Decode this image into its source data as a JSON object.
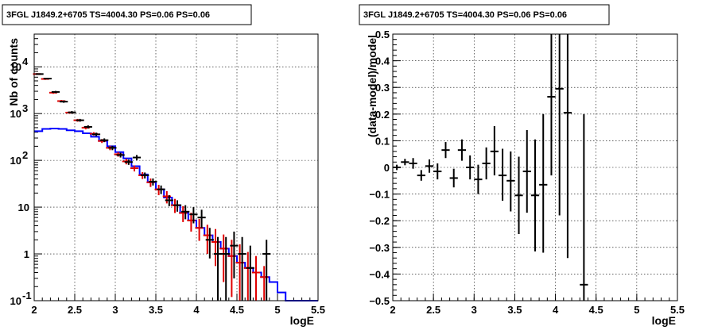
{
  "chart_data": [
    {
      "type": "line",
      "title": "3FGL J1849.2+6705 TS=4004.30 PS=0.06 PS=0.06",
      "xlabel": "logE",
      "ylabel": "Nb of counts",
      "xlim": [
        2,
        5.5
      ],
      "ylim": [
        0.1,
        50000
      ],
      "y_scale": "log",
      "grid": true,
      "x_ticks": [
        "2",
        "2.5",
        "3",
        "3.5",
        "4",
        "4.5",
        "5",
        "5.5"
      ],
      "y_ticks": [
        {
          "v": 0.1,
          "base": "10",
          "exp": "-1"
        },
        {
          "v": 1,
          "base": "1",
          "exp": ""
        },
        {
          "v": 10,
          "base": "10",
          "exp": ""
        },
        {
          "v": 100,
          "base": "10",
          "exp": "2"
        },
        {
          "v": 1000,
          "base": "10",
          "exp": "3"
        },
        {
          "v": 10000,
          "base": "10",
          "exp": "4"
        }
      ],
      "series": [
        {
          "kind": "model-step",
          "color": "#0000ff",
          "x_edges": [
            2.0,
            2.1,
            2.2,
            2.3,
            2.4,
            2.5,
            2.6,
            2.7,
            2.8,
            2.9,
            3.0,
            3.1,
            3.2,
            3.3,
            3.4,
            3.5,
            3.6,
            3.7,
            3.8,
            3.9,
            4.0,
            4.1,
            4.2,
            4.3,
            4.4,
            4.5,
            4.6,
            4.7,
            4.8,
            4.9,
            5.0,
            5.1,
            5.2,
            5.3,
            5.4,
            5.5
          ],
          "values": [
            420,
            470,
            480,
            470,
            440,
            420,
            380,
            320,
            260,
            200,
            150,
            110,
            75,
            50,
            34,
            24,
            16,
            11,
            7.5,
            5.2,
            3.6,
            2.5,
            1.8,
            1.3,
            0.9,
            0.65,
            0.5,
            0.4,
            0.32,
            0.25,
            0.15,
            0.1,
            0.1,
            0.1,
            0.1
          ]
        },
        {
          "kind": "model-points",
          "color": "#e00000",
          "points": [
            {
              "x": 2.05,
              "y": 7000,
              "lo": 6700,
              "hi": 7300
            },
            {
              "x": 2.15,
              "y": 5500,
              "lo": 5250,
              "hi": 5750
            },
            {
              "x": 2.25,
              "y": 2800,
              "lo": 2650,
              "hi": 2950
            },
            {
              "x": 2.35,
              "y": 1850,
              "lo": 1750,
              "hi": 1950
            },
            {
              "x": 2.45,
              "y": 1050,
              "lo": 990,
              "hi": 1110
            },
            {
              "x": 2.55,
              "y": 720,
              "lo": 670,
              "hi": 770
            },
            {
              "x": 2.65,
              "y": 500,
              "lo": 460,
              "hi": 540
            },
            {
              "x": 2.75,
              "y": 370,
              "lo": 340,
              "hi": 400
            },
            {
              "x": 2.85,
              "y": 260,
              "lo": 235,
              "hi": 285
            },
            {
              "x": 2.95,
              "y": 185,
              "lo": 165,
              "hi": 205
            },
            {
              "x": 3.05,
              "y": 135,
              "lo": 120,
              "hi": 150
            },
            {
              "x": 3.15,
              "y": 95,
              "lo": 82,
              "hi": 108
            },
            {
              "x": 3.25,
              "y": 68,
              "lo": 58,
              "hi": 78
            },
            {
              "x": 3.35,
              "y": 48,
              "lo": 40,
              "hi": 56
            },
            {
              "x": 3.45,
              "y": 34,
              "lo": 27,
              "hi": 41
            },
            {
              "x": 3.55,
              "y": 24,
              "lo": 18,
              "hi": 30
            },
            {
              "x": 3.65,
              "y": 17,
              "lo": 12,
              "hi": 22
            },
            {
              "x": 3.75,
              "y": 11,
              "lo": 7.5,
              "hi": 15
            },
            {
              "x": 3.85,
              "y": 7.5,
              "lo": 4.8,
              "hi": 10.5
            },
            {
              "x": 3.95,
              "y": 5.2,
              "lo": 3.0,
              "hi": 7.6
            },
            {
              "x": 4.05,
              "y": 3.6,
              "lo": 1.9,
              "hi": 5.6
            },
            {
              "x": 4.15,
              "y": 2.5,
              "lo": 1.0,
              "hi": 4.2
            },
            {
              "x": 4.25,
              "y": 1.8,
              "lo": 0.55,
              "hi": 3.4
            },
            {
              "x": 4.35,
              "y": 1.3,
              "lo": 0.25,
              "hi": 2.6
            },
            {
              "x": 4.45,
              "y": 0.9,
              "lo": 0.12,
              "hi": 2.0
            },
            {
              "x": 4.55,
              "y": 0.65,
              "lo": 0.1,
              "hi": 1.6
            },
            {
              "x": 4.65,
              "y": 0.5,
              "lo": 0.1,
              "hi": 1.1
            },
            {
              "x": 4.75,
              "y": 0.4,
              "lo": 0.1,
              "hi": 0.9
            },
            {
              "x": 4.85,
              "y": 0.32,
              "lo": 0.1,
              "hi": 0.55
            }
          ]
        },
        {
          "kind": "data-points",
          "color": "#000000",
          "points": [
            {
              "x": 2.05,
              "y": 7000,
              "lo": 6750,
              "hi": 7250
            },
            {
              "x": 2.15,
              "y": 5600,
              "lo": 5380,
              "hi": 5820
            },
            {
              "x": 2.25,
              "y": 2900,
              "lo": 2750,
              "hi": 3050
            },
            {
              "x": 2.35,
              "y": 1800,
              "lo": 1700,
              "hi": 1900
            },
            {
              "x": 2.45,
              "y": 1060,
              "lo": 990,
              "hi": 1130
            },
            {
              "x": 2.55,
              "y": 720,
              "lo": 670,
              "hi": 770
            },
            {
              "x": 2.65,
              "y": 520,
              "lo": 480,
              "hi": 560
            },
            {
              "x": 2.75,
              "y": 360,
              "lo": 330,
              "hi": 390
            },
            {
              "x": 2.85,
              "y": 270,
              "lo": 245,
              "hi": 295
            },
            {
              "x": 2.95,
              "y": 185,
              "lo": 165,
              "hi": 205
            },
            {
              "x": 3.05,
              "y": 130,
              "lo": 115,
              "hi": 145
            },
            {
              "x": 3.15,
              "y": 92,
              "lo": 80,
              "hi": 104
            },
            {
              "x": 3.25,
              "y": 115,
              "lo": 100,
              "hi": 130
            },
            {
              "x": 3.35,
              "y": 48,
              "lo": 41,
              "hi": 55
            },
            {
              "x": 3.45,
              "y": 35,
              "lo": 29,
              "hi": 41
            },
            {
              "x": 3.55,
              "y": 24,
              "lo": 19,
              "hi": 29
            },
            {
              "x": 3.65,
              "y": 14,
              "lo": 10.5,
              "hi": 18
            },
            {
              "x": 3.75,
              "y": 11,
              "lo": 8,
              "hi": 14
            },
            {
              "x": 3.85,
              "y": 8,
              "lo": 5.5,
              "hi": 11
            },
            {
              "x": 3.95,
              "y": 7,
              "lo": 4.5,
              "hi": 10
            },
            {
              "x": 4.05,
              "y": 6,
              "lo": 3.6,
              "hi": 8.8
            },
            {
              "x": 4.15,
              "y": 2,
              "lo": 0.8,
              "hi": 3.6
            },
            {
              "x": 4.25,
              "y": 1,
              "lo": 0.1,
              "hi": 2.3
            },
            {
              "x": 4.35,
              "y": 1,
              "lo": 0.1,
              "hi": 2.3
            },
            {
              "x": 4.45,
              "y": 1.5,
              "lo": 0.3,
              "hi": 3.0
            },
            {
              "x": 4.55,
              "y": 1,
              "lo": 0.1,
              "hi": 2.3
            },
            {
              "x": 4.65,
              "y": 0.5,
              "lo": 0.1,
              "hi": 1.5
            },
            {
              "x": 4.85,
              "y": 1,
              "lo": 0.1,
              "hi": 2.0
            }
          ]
        }
      ]
    },
    {
      "type": "scatter",
      "title": "3FGL J1849.2+6705 TS=4004.30 PS=0.06 PS=0.06",
      "xlabel": "logE",
      "ylabel": "(data-model)/model",
      "xlim": [
        2,
        5.5
      ],
      "ylim": [
        -0.5,
        0.5
      ],
      "grid": true,
      "x_ticks": [
        "2",
        "2.5",
        "3",
        "3.5",
        "4",
        "4.5",
        "5",
        "5.5"
      ],
      "y_ticks": [
        "-0.5",
        "-0.4",
        "-0.3",
        "-0.2",
        "-0.1",
        "0",
        "0.1",
        "0.2",
        "0.3",
        "0.4",
        "0.5"
      ],
      "series": [
        {
          "color": "#000000",
          "points": [
            {
              "x": 2.05,
              "y": 0.0,
              "lo": -0.01,
              "hi": 0.01
            },
            {
              "x": 2.15,
              "y": 0.02,
              "lo": 0.008,
              "hi": 0.032
            },
            {
              "x": 2.25,
              "y": 0.015,
              "lo": -0.005,
              "hi": 0.035
            },
            {
              "x": 2.35,
              "y": -0.03,
              "lo": -0.05,
              "hi": -0.01
            },
            {
              "x": 2.45,
              "y": 0.005,
              "lo": -0.02,
              "hi": 0.03
            },
            {
              "x": 2.55,
              "y": -0.015,
              "lo": -0.045,
              "hi": 0.015
            },
            {
              "x": 2.65,
              "y": 0.065,
              "lo": 0.035,
              "hi": 0.095
            },
            {
              "x": 2.75,
              "y": -0.04,
              "lo": -0.075,
              "hi": -0.005
            },
            {
              "x": 2.85,
              "y": 0.065,
              "lo": 0.025,
              "hi": 0.105
            },
            {
              "x": 2.95,
              "y": 0.0,
              "lo": -0.045,
              "hi": 0.045
            },
            {
              "x": 3.05,
              "y": -0.045,
              "lo": -0.1,
              "hi": 0.01
            },
            {
              "x": 3.15,
              "y": 0.015,
              "lo": -0.045,
              "hi": 0.075
            },
            {
              "x": 3.25,
              "y": 0.06,
              "lo": -0.03,
              "hi": 0.155
            },
            {
              "x": 3.35,
              "y": -0.03,
              "lo": -0.125,
              "hi": 0.07
            },
            {
              "x": 3.45,
              "y": -0.05,
              "lo": -0.165,
              "hi": 0.06
            },
            {
              "x": 3.55,
              "y": -0.105,
              "lo": -0.25,
              "hi": 0.04
            },
            {
              "x": 3.65,
              "y": -0.015,
              "lo": -0.17,
              "hi": 0.14
            },
            {
              "x": 3.75,
              "y": -0.105,
              "lo": -0.315,
              "hi": 0.105
            },
            {
              "x": 3.85,
              "y": -0.065,
              "lo": -0.32,
              "hi": 0.2
            },
            {
              "x": 3.95,
              "y": 0.265,
              "lo": -0.03,
              "hi": 0.5
            },
            {
              "x": 4.05,
              "y": 0.295,
              "lo": -0.18,
              "hi": 0.5
            },
            {
              "x": 4.15,
              "y": 0.205,
              "lo": -0.34,
              "hi": 0.5
            },
            {
              "x": 4.35,
              "y": -0.44,
              "lo": -0.5,
              "hi": 0.2
            }
          ]
        }
      ]
    }
  ]
}
